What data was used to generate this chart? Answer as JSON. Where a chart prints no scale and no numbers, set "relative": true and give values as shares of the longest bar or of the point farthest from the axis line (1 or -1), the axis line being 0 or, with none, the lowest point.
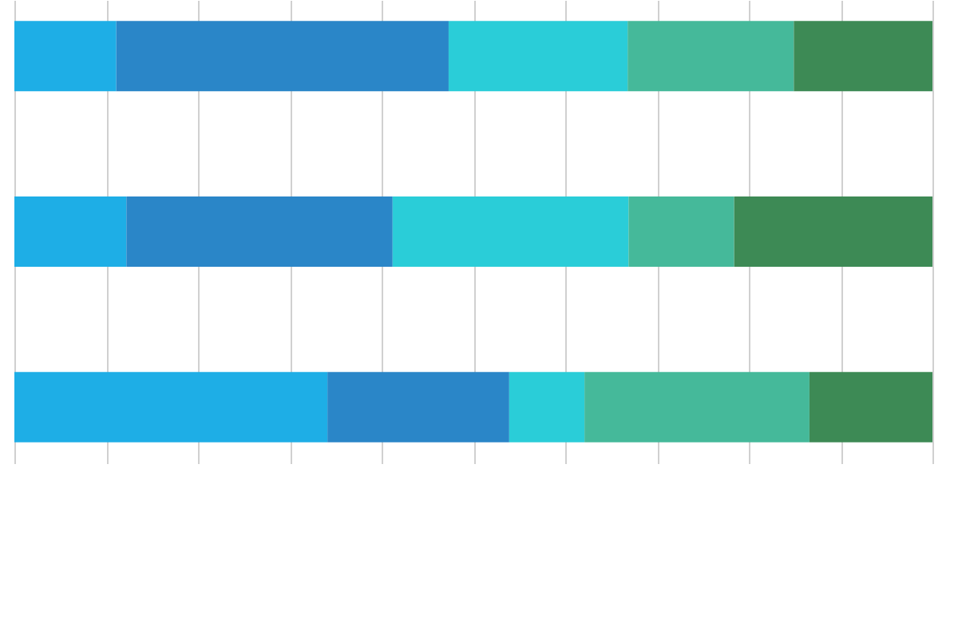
{
  "chart_data": {
    "type": "bar",
    "orientation": "horizontal",
    "stacked": true,
    "relative": true,
    "grid": "x",
    "categories": [
      null,
      null,
      null
    ],
    "series": [
      {
        "color": "#1eaee6",
        "values": [
          0.111,
          0.122,
          0.341
        ]
      },
      {
        "color": "#2a86c8",
        "values": [
          0.362,
          0.29,
          0.198
        ]
      },
      {
        "color": "#2acdd8",
        "values": [
          0.195,
          0.257,
          0.082
        ]
      },
      {
        "color": "#45b99a",
        "values": [
          0.181,
          0.115,
          0.245
        ]
      },
      {
        "color": "#3d8a55",
        "values": [
          0.151,
          0.216,
          0.134
        ]
      }
    ]
  }
}
